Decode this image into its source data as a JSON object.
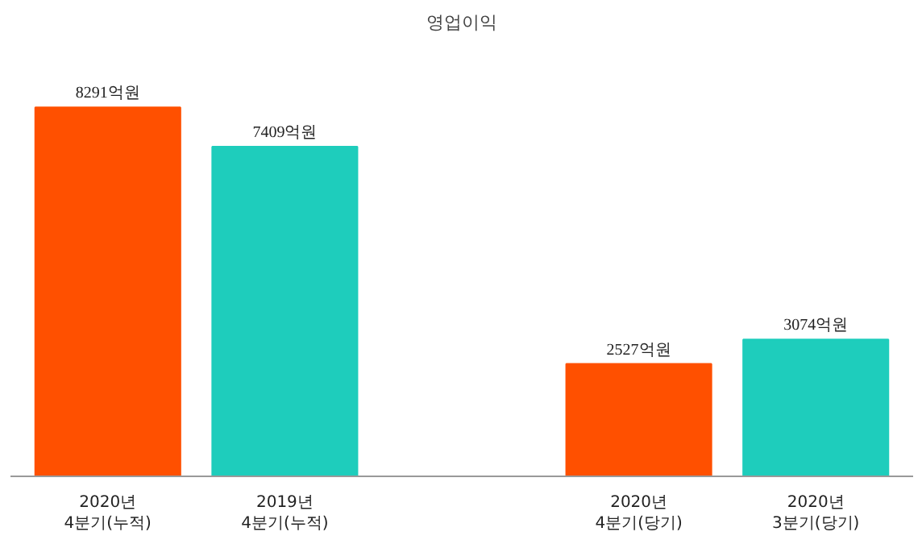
{
  "chart_data": {
    "type": "bar",
    "title": "영업이익",
    "categories": [
      "2020년\n4분기(누적)",
      "2019년\n4분기(누적)",
      null,
      "2020년\n4분기(당기)",
      "2020년\n3분기(당기)"
    ],
    "values": [
      8291,
      7409,
      null,
      2527,
      3074
    ],
    "colors": [
      "#ff5000",
      "#1ecdbc",
      null,
      "#ff5000",
      "#1ecdbc"
    ],
    "value_labels": [
      "8291억원",
      "7409억원",
      null,
      "2527억원",
      "3074억원"
    ],
    "grid": false
  }
}
